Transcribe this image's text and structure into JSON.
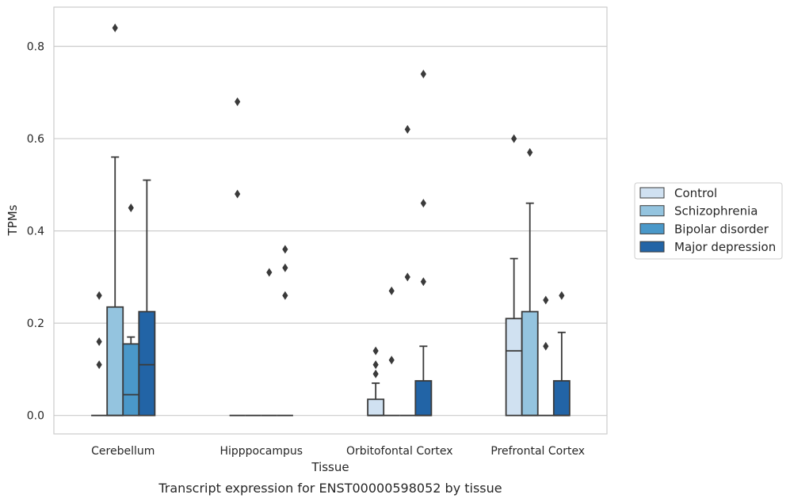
{
  "chart_data": {
    "type": "box",
    "title": "",
    "caption": "Transcript expression for ENST00000598052 by tissue",
    "xlabel": "Tissue",
    "ylabel": "TPMs",
    "ylim": [
      -0.04,
      0.885
    ],
    "yticks": [
      "0.0",
      "0.2",
      "0.4",
      "0.6",
      "0.8"
    ],
    "ytick_values": [
      0.0,
      0.2,
      0.4,
      0.6,
      0.8
    ],
    "grid": "horizontal",
    "legend_position": "right",
    "categories": [
      "Cerebellum",
      "Hipppocampus",
      "Orbitofontal Cortex",
      "Prefrontal Cortex"
    ],
    "series": [
      {
        "name": "Control",
        "color": "#d0e1f1",
        "boxes": [
          {
            "q1": 0,
            "median": 0,
            "q3": 0,
            "whisker_low": 0,
            "whisker_high": 0,
            "outliers": [
              0.11,
              0.16,
              0.26
            ]
          },
          {
            "q1": 0,
            "median": 0,
            "q3": 0,
            "whisker_low": 0,
            "whisker_high": 0,
            "outliers": [
              0.48,
              0.68
            ]
          },
          {
            "q1": 0,
            "median": 0,
            "q3": 0.035,
            "whisker_low": 0,
            "whisker_high": 0.07,
            "outliers": [
              0.09,
              0.11,
              0.14
            ]
          },
          {
            "q1": 0,
            "median": 0.14,
            "q3": 0.21,
            "whisker_low": 0,
            "whisker_high": 0.34,
            "outliers": [
              0.6
            ]
          }
        ]
      },
      {
        "name": "Schizophrenia",
        "color": "#94c4df",
        "boxes": [
          {
            "q1": 0,
            "median": 0,
            "q3": 0.235,
            "whisker_low": 0,
            "whisker_high": 0.56,
            "outliers": [
              0.84
            ]
          },
          {
            "q1": 0,
            "median": 0,
            "q3": 0,
            "whisker_low": 0,
            "whisker_high": 0,
            "outliers": []
          },
          {
            "q1": 0,
            "median": 0,
            "q3": 0,
            "whisker_low": 0,
            "whisker_high": 0,
            "outliers": [
              0.12,
              0.27
            ]
          },
          {
            "q1": 0,
            "median": 0,
            "q3": 0.225,
            "whisker_low": 0,
            "whisker_high": 0.46,
            "outliers": [
              0.57
            ]
          }
        ]
      },
      {
        "name": "Bipolar disorder",
        "color": "#4a98c9",
        "boxes": [
          {
            "q1": 0,
            "median": 0.045,
            "q3": 0.155,
            "whisker_low": 0,
            "whisker_high": 0.17,
            "outliers": [
              0.45
            ]
          },
          {
            "q1": 0,
            "median": 0,
            "q3": 0,
            "whisker_low": 0,
            "whisker_high": 0,
            "outliers": [
              0.31
            ]
          },
          {
            "q1": 0,
            "median": 0,
            "q3": 0,
            "whisker_low": 0,
            "whisker_high": 0,
            "outliers": [
              0.3,
              0.62
            ]
          },
          {
            "q1": 0,
            "median": 0,
            "q3": 0,
            "whisker_low": 0,
            "whisker_high": 0,
            "outliers": [
              0.15,
              0.25
            ]
          }
        ]
      },
      {
        "name": "Major depression",
        "color": "#2264a6",
        "boxes": [
          {
            "q1": 0,
            "median": 0.11,
            "q3": 0.225,
            "whisker_low": 0,
            "whisker_high": 0.51,
            "outliers": []
          },
          {
            "q1": 0,
            "median": 0,
            "q3": 0,
            "whisker_low": 0,
            "whisker_high": 0,
            "outliers": [
              0.26,
              0.32,
              0.36
            ]
          },
          {
            "q1": 0,
            "median": 0,
            "q3": 0.075,
            "whisker_low": 0,
            "whisker_high": 0.15,
            "outliers": [
              0.29,
              0.46,
              0.74
            ]
          },
          {
            "q1": 0,
            "median": 0,
            "q3": 0.075,
            "whisker_low": 0,
            "whisker_high": 0.18,
            "outliers": [
              0.26
            ]
          }
        ]
      }
    ]
  }
}
